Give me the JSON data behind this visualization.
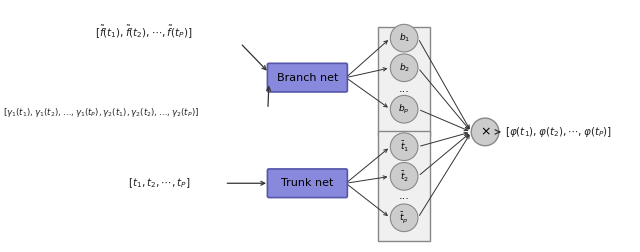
{
  "fig_width": 6.4,
  "fig_height": 2.52,
  "dpi": 100,
  "bg_color": "#ffffff",
  "box_color": "#8888dd",
  "box_edge_color": "#5555aa",
  "node_fc": "#cccccc",
  "node_ec": "#888888",
  "rect_fc": "#f0f0f0",
  "rect_ec": "#888888",
  "mult_fc": "#cccccc",
  "mult_ec": "#888888",
  "branch_label": "Branch net",
  "trunk_label": "Trunk net",
  "input1_text": "$[\\tilde{f}(t_1), \\tilde{f}(t_2), \\cdots, \\tilde{f}(t_P)]$",
  "input2_text": "$[\\gamma_1(t_1), \\gamma_1(t_2), \\ldots, \\gamma_1(t_P), \\gamma_2(t_1), \\gamma_2(t_2), \\ldots, \\gamma_2(t_P)]$",
  "input3_text": "$[t_1, t_2, \\cdots, t_P]$",
  "output_text": "$[\\varphi(t_1), \\varphi(t_2), \\cdots, \\varphi(t_P)]$",
  "b_labels": [
    "$b_1$",
    "$b_2$",
    "$b_p$"
  ],
  "t_labels": [
    "$\\bar{t}_1$",
    "$\\bar{t}_2$",
    "$\\bar{t}_p$"
  ],
  "arrow_color": "#333333",
  "text_color": "#222222"
}
